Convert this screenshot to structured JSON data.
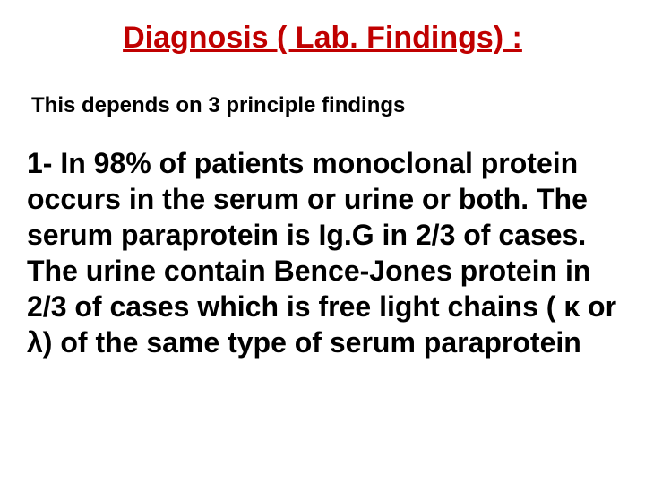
{
  "title": {
    "text": "Diagnosis ( Lab. Findings) :",
    "color": "#c00000",
    "fontsize": 34
  },
  "subtitle": {
    "text": "This depends on 3 principle findings",
    "color": "#000000",
    "fontsize": 24
  },
  "body": {
    "text": "1- In 98% of patients monoclonal protein occurs in the serum or urine or both. The serum paraprotein is Ig.G in 2/3 of cases. The urine contain Bence-Jones protein in 2/3 of cases which is free light chains ( κ or λ) of the same type of serum paraprotein",
    "color": "#000000",
    "fontsize": 32
  },
  "background_color": "#ffffff"
}
